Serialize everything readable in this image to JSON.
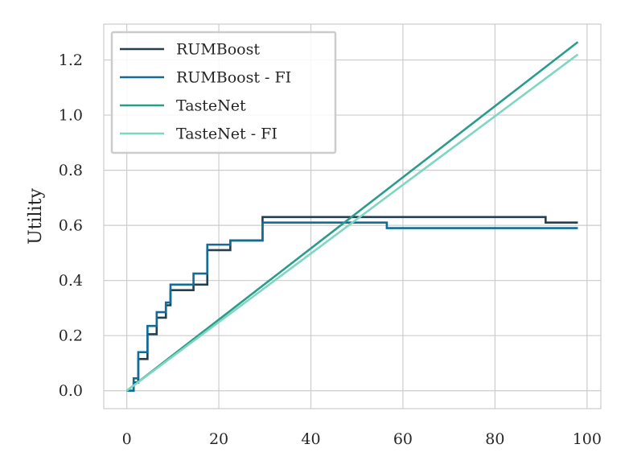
{
  "chart_data": {
    "type": "line",
    "title": "",
    "xlabel": "",
    "ylabel": "Utility",
    "xlim": [
      -5,
      103
    ],
    "ylim": [
      -0.065,
      1.33
    ],
    "xticks": [
      0,
      20,
      40,
      60,
      80,
      100
    ],
    "yticks": [
      0.0,
      0.2,
      0.4,
      0.6,
      0.8,
      1.0,
      1.2
    ],
    "xtick_labels": [
      "0",
      "20",
      "40",
      "60",
      "80",
      "100"
    ],
    "ytick_labels": [
      "0.0",
      "0.2",
      "0.4",
      "0.6",
      "0.8",
      "1.0",
      "1.2"
    ],
    "grid": true,
    "legend_position": "top-left",
    "series": [
      {
        "name": "RUMBoost",
        "color": "#24404f",
        "step": true,
        "x": [
          0,
          1.5,
          2.5,
          4.5,
          6.5,
          8.5,
          9.5,
          14.5,
          17.5,
          22.5,
          29.5,
          91,
          98
        ],
        "y": [
          0,
          0.03,
          0.115,
          0.205,
          0.265,
          0.31,
          0.365,
          0.385,
          0.51,
          0.545,
          0.63,
          0.61,
          0.61
        ]
      },
      {
        "name": "RUMBoost - FI",
        "color": "#116d97",
        "step": true,
        "x": [
          0,
          1.5,
          2.5,
          4.5,
          6.5,
          8.5,
          9.5,
          14.5,
          17.5,
          22.5,
          29.5,
          56.5,
          98
        ],
        "y": [
          0,
          0.045,
          0.14,
          0.235,
          0.285,
          0.32,
          0.385,
          0.425,
          0.53,
          0.545,
          0.61,
          0.59,
          0.59
        ]
      },
      {
        "name": "TasteNet",
        "color": "#2a9c8b",
        "step": false,
        "x": [
          0,
          98
        ],
        "y": [
          0,
          1.265
        ]
      },
      {
        "name": "TasteNet - FI",
        "color": "#7fd6c1",
        "step": false,
        "x": [
          0,
          98
        ],
        "y": [
          0,
          1.22
        ]
      }
    ]
  }
}
